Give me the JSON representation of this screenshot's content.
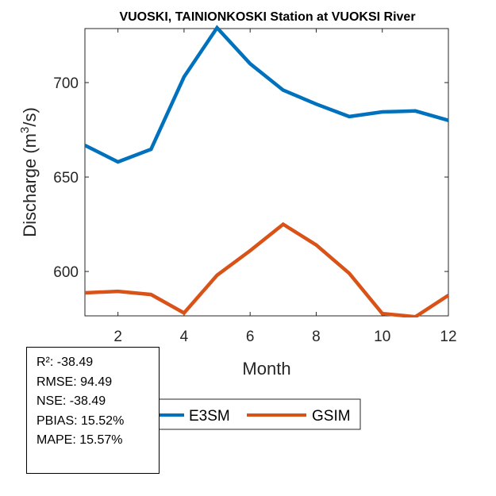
{
  "chart_data": {
    "type": "line",
    "title": "VUOSKI, TAINIONKOSKI  Station at  VUOKSI  River",
    "xlabel": "Month",
    "ylabel": "Discharge (m³/s)",
    "ylabel_parts": {
      "pre": "Discharge (m",
      "sup": "3",
      "post": "/s)"
    },
    "xlim": [
      1,
      12
    ],
    "ylim": [
      576.5,
      728.6
    ],
    "xticks": [
      2,
      4,
      6,
      8,
      10,
      12
    ],
    "yticks": [
      600,
      650,
      700
    ],
    "grid": false,
    "legend_placement": "bottom-outside",
    "x": [
      1,
      2,
      3,
      4,
      5,
      6,
      7,
      8,
      9,
      10,
      11,
      12
    ],
    "series": [
      {
        "name": "E3SM",
        "color": "#0072BD",
        "values": [
          666.8,
          658,
          664.7,
          703,
          729,
          710,
          696,
          688.6,
          682,
          684.5,
          685,
          680
        ]
      },
      {
        "name": "GSIM",
        "color": "#D95319",
        "values": [
          588.7,
          589.5,
          587.8,
          578,
          598,
          611,
          625,
          614,
          599,
          577.7,
          576,
          587.4
        ]
      }
    ]
  },
  "stats": [
    "R²: -38.49",
    "RMSE: 94.49",
    "NSE: -38.49",
    "PBIAS: 15.52%",
    "MAPE: 15.57%"
  ]
}
